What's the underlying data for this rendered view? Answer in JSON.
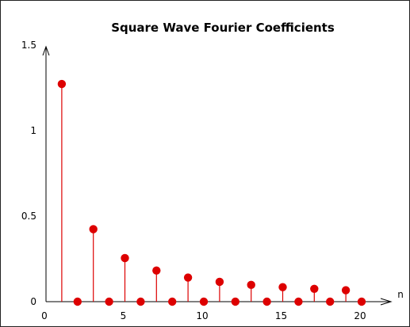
{
  "chart_data": {
    "type": "scatter",
    "style": "stem",
    "title": "Square Wave Fourier Coefficients",
    "xlabel": "n",
    "ylabel": "",
    "xlim": [
      0,
      22
    ],
    "ylim": [
      0,
      1.5
    ],
    "x_ticks": [
      "0",
      "5",
      "10",
      "15",
      "20"
    ],
    "y_ticks": [
      "0",
      "0.5",
      "1",
      "1.5"
    ],
    "grid": false,
    "color": "#dd0000",
    "series": [
      {
        "x": [
          1,
          2,
          3,
          4,
          5,
          6,
          7,
          8,
          9,
          10,
          11,
          12,
          13,
          14,
          15,
          16,
          17,
          18,
          19,
          20
        ],
        "y": [
          1.273,
          0,
          0.424,
          0,
          0.255,
          0,
          0.182,
          0,
          0.141,
          0,
          0.116,
          0,
          0.098,
          0,
          0.085,
          0,
          0.075,
          0,
          0.067,
          0
        ]
      }
    ]
  }
}
